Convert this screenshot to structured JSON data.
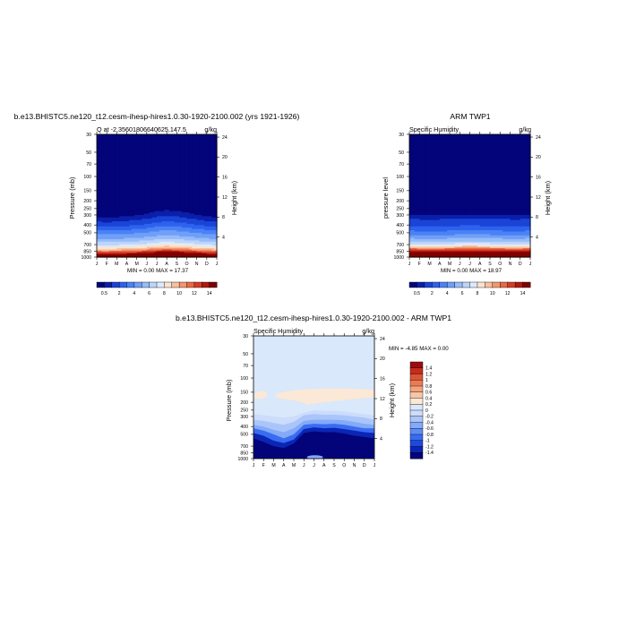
{
  "colors": {
    "scale": [
      "#03037a",
      "#0a1faa",
      "#1a44d6",
      "#2d62ee",
      "#4a82f6",
      "#6f9ff8",
      "#97bcf9",
      "#bcd5fb",
      "#dde9fc",
      "#fbe3cf",
      "#f7bfa0",
      "#f2976f",
      "#e86a44",
      "#d43d22",
      "#b21810",
      "#800000"
    ],
    "diff_scale": [
      "#03037a",
      "#0b25b4",
      "#1f49de",
      "#3a6cf2",
      "#5c8cf6",
      "#84aaf8",
      "#aac5fa",
      "#cbdcfc",
      "#d9e8fb",
      "#fbe8d6",
      "#f8c6a6",
      "#f3a37c",
      "#eb7b55",
      "#dd5435",
      "#c52c1b",
      "#9e0c0c"
    ],
    "diff_panel_tan": "#fbe8d6"
  },
  "chart_data": [
    {
      "type": "heatmap",
      "panel": "model",
      "title": "b.e13.BHISTC5.ne120_t12.cesm-ihesp-hires1.0.30-1920-2100.002 (yrs 1921-1926)",
      "left_label": "Q at -2.35601806640625,147.5",
      "right_label": "g/kg",
      "ylabel": "Pressure (mb)",
      "ylabel_right": "Height (km)",
      "x_ticklabels": [
        "J",
        "F",
        "M",
        "A",
        "M",
        "J",
        "J",
        "A",
        "S",
        "O",
        "N",
        "D",
        "J"
      ],
      "y_ticklabels": [
        "30",
        "50",
        "70",
        "100",
        "150",
        "200",
        "250",
        "300",
        "400",
        "500",
        "700",
        "850",
        "1000"
      ],
      "y_ticks": [
        30,
        50,
        70,
        100,
        150,
        200,
        250,
        300,
        400,
        500,
        700,
        850,
        1000
      ],
      "height_ticklabels": [
        "24",
        "20",
        "16",
        "12",
        "8",
        "4"
      ],
      "height_ticks": [
        24,
        20,
        16,
        12,
        8,
        4
      ],
      "ylim": [
        30,
        1000
      ],
      "stats": "MIN =   0.00 MAX =  17.37",
      "levels": [
        0.5,
        1,
        2,
        3,
        4,
        5,
        6,
        7,
        8,
        9,
        10,
        11,
        12,
        13,
        14
      ],
      "colorbar_labels": [
        "0.5",
        "2",
        "4",
        "6",
        "8",
        "10",
        "12",
        "14"
      ],
      "colorbar_label_levels": [
        0.5,
        2,
        4,
        6,
        8,
        10,
        12,
        14
      ],
      "profile_pressure": [
        30,
        100,
        200,
        300,
        350,
        400,
        450,
        500,
        600,
        700,
        800,
        850,
        925,
        1000
      ],
      "profile_q": [
        0.0,
        0.0,
        0.1,
        0.4,
        0.9,
        1.8,
        2.8,
        3.8,
        5.2,
        7.0,
        9.5,
        11.5,
        14.5,
        17.37
      ],
      "monthly_shift_mb": [
        -10,
        -12,
        -8,
        0,
        8,
        20,
        40,
        48,
        42,
        30,
        15,
        0,
        -10
      ]
    },
    {
      "type": "heatmap",
      "panel": "obs",
      "title": "ARM TWP1",
      "left_label": "Specific Humidity",
      "right_label": "g/kg",
      "ylabel": "pressure level",
      "ylabel_right": "Height (km)",
      "x_ticklabels": [
        "J",
        "F",
        "M",
        "A",
        "M",
        "J",
        "J",
        "A",
        "S",
        "O",
        "N",
        "D",
        "J"
      ],
      "y_ticklabels": [
        "30",
        "50",
        "70",
        "100",
        "150",
        "200",
        "250",
        "300",
        "400",
        "500",
        "700",
        "850",
        "1000"
      ],
      "y_ticks": [
        30,
        50,
        70,
        100,
        150,
        200,
        250,
        300,
        400,
        500,
        700,
        850,
        1000
      ],
      "height_ticklabels": [
        "24",
        "20",
        "16",
        "12",
        "8",
        "4"
      ],
      "height_ticks": [
        24,
        20,
        16,
        12,
        8,
        4
      ],
      "ylim": [
        30,
        1000
      ],
      "stats": "MIN =   0.00 MAX =  18.97",
      "levels": [
        0.5,
        1,
        2,
        3,
        4,
        5,
        6,
        7,
        8,
        9,
        10,
        11,
        12,
        13,
        14
      ],
      "colorbar_labels": [
        "0.5",
        "2",
        "4",
        "6",
        "8",
        "10",
        "12",
        "14"
      ],
      "colorbar_label_levels": [
        0.5,
        2,
        4,
        6,
        8,
        10,
        12,
        14
      ],
      "profile_pressure": [
        30,
        100,
        200,
        300,
        400,
        450,
        500,
        600,
        650,
        700,
        750,
        800,
        850,
        925,
        1000
      ],
      "profile_q": [
        0.0,
        0.0,
        0.1,
        0.5,
        1.8,
        2.6,
        3.5,
        5.2,
        6.0,
        7.5,
        9.5,
        11.5,
        13.5,
        16.0,
        18.97
      ],
      "monthly_shift_mb": [
        0,
        -2,
        -4,
        -2,
        0,
        4,
        6,
        4,
        2,
        0,
        -2,
        -2,
        0
      ]
    },
    {
      "type": "heatmap",
      "panel": "difference",
      "title": "b.e13.BHISTC5.ne120_t12.cesm-ihesp-hires1.0.30-1920-2100.002 - ARM TWP1",
      "left_label": "Specific Humidity",
      "right_label": "g/kg",
      "ylabel": "Pressure (mb)",
      "ylabel_right": "Height (km)",
      "x_ticklabels": [
        "J",
        "F",
        "M",
        "A",
        "M",
        "J",
        "J",
        "A",
        "S",
        "O",
        "N",
        "D",
        "J"
      ],
      "y_ticklabels": [
        "30",
        "50",
        "70",
        "100",
        "150",
        "200",
        "250",
        "300",
        "400",
        "500",
        "700",
        "850",
        "1000"
      ],
      "y_ticks": [
        30,
        50,
        70,
        100,
        150,
        200,
        250,
        300,
        400,
        500,
        700,
        850,
        1000
      ],
      "height_ticklabels": [
        "24",
        "20",
        "16",
        "12",
        "8",
        "4"
      ],
      "height_ticks": [
        24,
        20,
        16,
        12,
        8,
        4
      ],
      "ylim": [
        30,
        1000
      ],
      "stats": "MIN =  -4.85 MAX =   0.00",
      "levels": [
        -1.4,
        -1.2,
        -1,
        -0.8,
        -0.6,
        -0.4,
        -0.2,
        0,
        0.2,
        0.4,
        0.6,
        0.8,
        1,
        1.2,
        1.4
      ],
      "colorbar_labels": [
        "1.4",
        "1.2",
        "1",
        "0.8",
        "0.6",
        "0.4",
        "0.2",
        "0",
        "-0.2",
        "-0.4",
        "-0.6",
        "-0.8",
        "-1",
        "-1.2",
        "-1.4"
      ]
    }
  ]
}
